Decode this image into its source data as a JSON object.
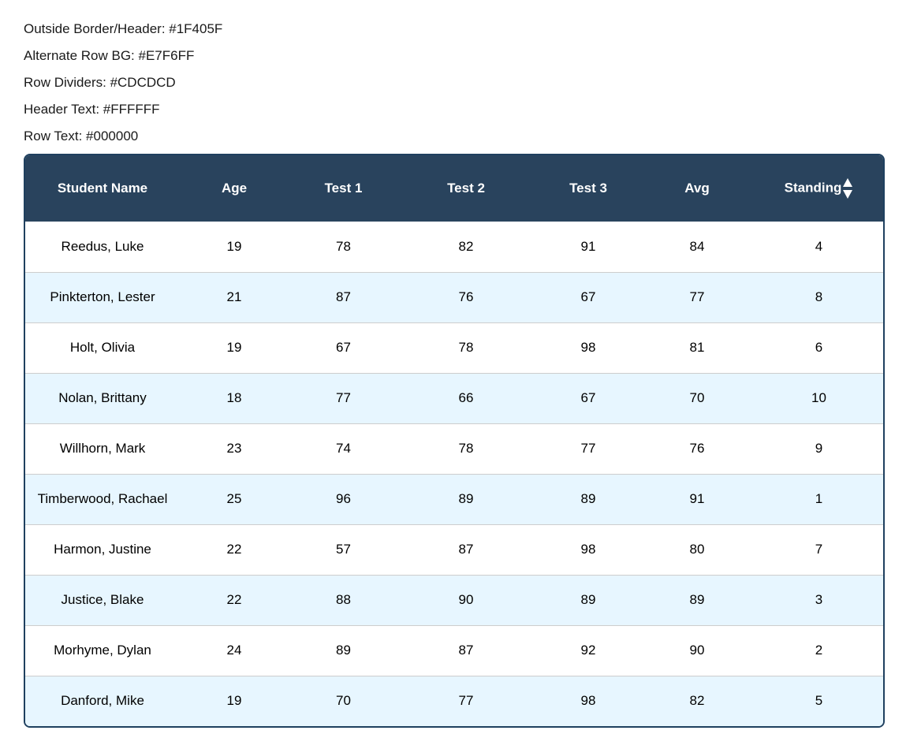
{
  "notes": [
    "Outside Border/Header: #1F405F",
    "Alternate Row BG: #E7F6FF",
    "Row Dividers: #CDCDCD",
    "Header Text: #FFFFFF",
    "Row Text: #000000"
  ],
  "colors": {
    "outside_border": "#1F405F",
    "header_bg": "#29435D",
    "alternate_row_bg": "#E7F6FF",
    "row_dividers": "#CDCDCD",
    "header_text": "#FFFFFF",
    "row_text": "#000000"
  },
  "table": {
    "headers": [
      "Student Name",
      "Age",
      "Test 1",
      "Test 2",
      "Test 3",
      "Avg",
      "Standing"
    ],
    "sort_icon": "sort-up-down-icon",
    "rows": [
      [
        "Reedus, Luke",
        "19",
        "78",
        "82",
        "91",
        "84",
        "4"
      ],
      [
        "Pinkterton, Lester",
        "21",
        "87",
        "76",
        "67",
        "77",
        "8"
      ],
      [
        "Holt, Olivia",
        "19",
        "67",
        "78",
        "98",
        "81",
        "6"
      ],
      [
        "Nolan, Brittany",
        "18",
        "77",
        "66",
        "67",
        "70",
        "10"
      ],
      [
        "Willhorn, Mark",
        "23",
        "74",
        "78",
        "77",
        "76",
        "9"
      ],
      [
        "Timberwood, Rachael",
        "25",
        "96",
        "89",
        "89",
        "91",
        "1"
      ],
      [
        "Harmon, Justine",
        "22",
        "57",
        "87",
        "98",
        "80",
        "7"
      ],
      [
        "Justice, Blake",
        "22",
        "88",
        "90",
        "89",
        "89",
        "3"
      ],
      [
        "Morhyme, Dylan",
        "24",
        "89",
        "87",
        "92",
        "90",
        "2"
      ],
      [
        "Danford, Mike",
        "19",
        "70",
        "77",
        "98",
        "82",
        "5"
      ]
    ]
  }
}
